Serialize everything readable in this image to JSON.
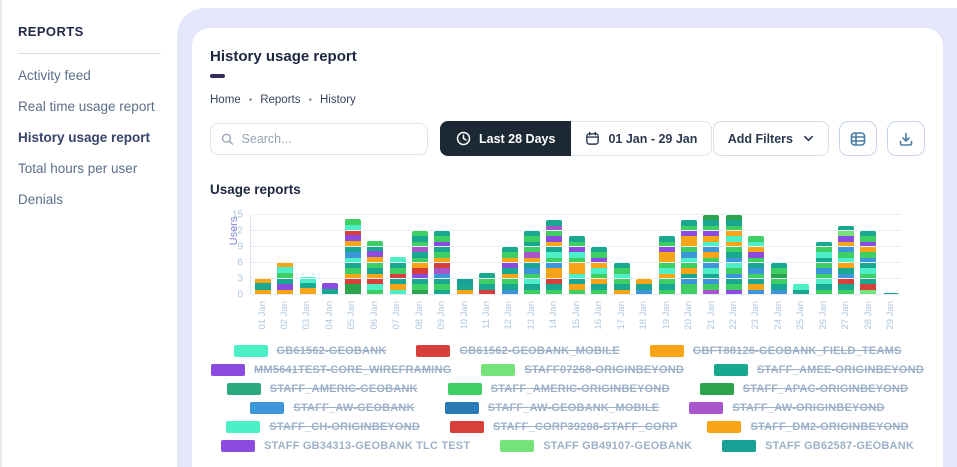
{
  "sidebar": {
    "section_label": "REPORTS",
    "items": [
      {
        "label": "Activity feed",
        "active": false
      },
      {
        "label": "Real time usage report",
        "active": false
      },
      {
        "label": "History usage report",
        "active": true
      },
      {
        "label": "Total hours per user",
        "active": false
      },
      {
        "label": "Denials",
        "active": false
      }
    ]
  },
  "header": {
    "title": "History usage report",
    "breadcrumb": [
      "Home",
      "Reports",
      "History"
    ]
  },
  "toolbar": {
    "search_placeholder": "Search...",
    "range_button": "Last 28 Days",
    "date_range": "01 Jan - 29 Jan",
    "add_filters": "Add Filters"
  },
  "section_title": "Usage reports",
  "colors": {
    "accent_dark": "#1c2834",
    "shell": "#e5e6f9",
    "underline": "#322c5a",
    "palette": {
      "mint": "#4df0c6",
      "red": "#d7403a",
      "orange": "#f7a516",
      "violet": "#8c4be0",
      "lgreen": "#76e37a",
      "teal": "#18a88f",
      "seagreen": "#2aa87e",
      "green": "#3ecf63",
      "dgreen": "#2ca44e",
      "blue": "#3d96d9",
      "dblue": "#2a79b5",
      "plum": "#a855cb",
      "teal2": "#16a096"
    }
  },
  "chart_data": {
    "type": "bar",
    "variant": "stacked",
    "title": "Usage reports",
    "xlabel": "",
    "ylabel": "Users",
    "ylim": [
      0,
      15
    ],
    "yticks": [
      0,
      3,
      6,
      9,
      12,
      15
    ],
    "grid": true,
    "legend_position": "bottom",
    "categories": [
      "01 Jan",
      "02 Jan",
      "03 Jan",
      "04 Jan",
      "05 Jan",
      "06 Jan",
      "07 Jan",
      "08 Jan",
      "09 Jan",
      "10 Jan",
      "11 Jan",
      "12 Jan",
      "13 Jan",
      "14 Jan",
      "15 Jan",
      "16 Jan",
      "17 Jan",
      "18 Jan",
      "19 Jan",
      "20 Jan",
      "21 Jan",
      "22 Jan",
      "23 Jan",
      "24 Jan",
      "25 Jan",
      "26 Jan",
      "27 Jan",
      "28 Jan",
      "29 Jan"
    ],
    "totals": [
      3.2,
      6.2,
      3.3,
      2.2,
      14.2,
      10.2,
      7.2,
      12.1,
      12.1,
      3.1,
      4.1,
      9,
      12.1,
      14,
      11,
      9,
      6,
      3,
      11,
      14,
      15,
      15,
      11,
      6,
      2,
      10,
      13,
      12,
      0.3
    ],
    "series": [
      {
        "name": "GB61562-GEOBANK",
        "color": "mint"
      },
      {
        "name": "GB61562-GEOBANK_MOBILE",
        "color": "red"
      },
      {
        "name": "GBFT88126-GEOBANK_FIELD_TEAMS",
        "color": "orange"
      },
      {
        "name": "MM5641TEST-CORE_WIREFRAMING",
        "color": "violet"
      },
      {
        "name": "STAFF07268-ORIGINBEYOND",
        "color": "lgreen"
      },
      {
        "name": "STAFF_AMEE-ORIGINBEYOND",
        "color": "teal"
      },
      {
        "name": "STAFF_AMERIC-GEOBANK",
        "color": "seagreen"
      },
      {
        "name": "STAFF_AMERIC-ORIGINBEYOND",
        "color": "green"
      },
      {
        "name": "STAFF_APAC-ORIGINBEYOND",
        "color": "dgreen"
      },
      {
        "name": "STAFF_AW-GEOBANK",
        "color": "blue"
      },
      {
        "name": "STAFF_AW-GEOBANK_MOBILE",
        "color": "dblue"
      },
      {
        "name": "STAFF_AW-ORIGINBEYOND",
        "color": "plum"
      },
      {
        "name": "STAFF_CH-ORIGINBEYOND",
        "color": "mint"
      },
      {
        "name": "STAFF_CORP39208-STAFF_CORP",
        "color": "red"
      },
      {
        "name": "STAFF_DM2-ORIGINBEYOND",
        "color": "orange"
      },
      {
        "name": "STAFF GB34313-GEOBANK TLC TEST",
        "color": "violet"
      },
      {
        "name": "STAFF GB49107-GEOBANK",
        "color": "lgreen"
      },
      {
        "name": "STAFF GB62587-GEOBANK",
        "color": "teal2"
      }
    ],
    "bars": [
      [
        [
          "orange",
          1
        ],
        [
          "teal",
          1.2
        ],
        [
          "orange",
          1
        ]
      ],
      [
        [
          "orange",
          1
        ],
        [
          "violet",
          1
        ],
        [
          "teal",
          1
        ],
        [
          "green",
          1.2
        ],
        [
          "mint",
          1
        ],
        [
          "orange",
          1
        ]
      ],
      [
        [
          "orange",
          1.3
        ],
        [
          "teal",
          1
        ],
        [
          "mint",
          1
        ]
      ],
      [
        [
          "teal",
          1.2
        ],
        [
          "violet",
          1
        ]
      ],
      [
        [
          "dgreen",
          2
        ],
        [
          "red",
          1
        ],
        [
          "orange",
          1
        ],
        [
          "green",
          1
        ],
        [
          "teal",
          1
        ],
        [
          "mint",
          1
        ],
        [
          "blue",
          1
        ],
        [
          "teal",
          1
        ],
        [
          "orange",
          1.2
        ],
        [
          "violet",
          1
        ],
        [
          "red",
          1
        ],
        [
          "mint",
          1
        ],
        [
          "green",
          1
        ]
      ],
      [
        [
          "green",
          1
        ],
        [
          "mint",
          1
        ],
        [
          "red",
          1
        ],
        [
          "orange",
          1
        ],
        [
          "teal",
          1
        ],
        [
          "green",
          1
        ],
        [
          "orange",
          1.2
        ],
        [
          "violet",
          1
        ],
        [
          "teal",
          1
        ],
        [
          "green",
          1
        ]
      ],
      [
        [
          "mint",
          1
        ],
        [
          "orange",
          1
        ],
        [
          "teal",
          1
        ],
        [
          "red",
          1
        ],
        [
          "green",
          1
        ],
        [
          "teal",
          1
        ],
        [
          "mint",
          1.2
        ]
      ],
      [
        [
          "dgreen",
          1
        ],
        [
          "green",
          1
        ],
        [
          "teal",
          1
        ],
        [
          "violet",
          1
        ],
        [
          "red",
          1
        ],
        [
          "orange",
          1
        ],
        [
          "green",
          1
        ],
        [
          "teal",
          1
        ],
        [
          "plum",
          1
        ],
        [
          "green",
          1
        ],
        [
          "teal",
          1
        ],
        [
          "green",
          1.1
        ]
      ],
      [
        [
          "teal",
          1
        ],
        [
          "green",
          1
        ],
        [
          "teal",
          1
        ],
        [
          "blue",
          1
        ],
        [
          "plum",
          1
        ],
        [
          "red",
          1
        ],
        [
          "orange",
          1
        ],
        [
          "green",
          1
        ],
        [
          "teal",
          1
        ],
        [
          "violet",
          1
        ],
        [
          "green",
          1
        ],
        [
          "teal",
          1.1
        ]
      ],
      [
        [
          "orange",
          1
        ],
        [
          "teal",
          1
        ],
        [
          "teal2",
          1.1
        ]
      ],
      [
        [
          "red",
          1
        ],
        [
          "teal",
          1
        ],
        [
          "green",
          1
        ],
        [
          "teal",
          1.1
        ]
      ],
      [
        [
          "blue",
          1
        ],
        [
          "teal",
          1
        ],
        [
          "green",
          1
        ],
        [
          "orange",
          1
        ],
        [
          "teal",
          1
        ],
        [
          "violet",
          1
        ],
        [
          "orange",
          1
        ],
        [
          "green",
          1
        ],
        [
          "teal",
          1
        ]
      ],
      [
        [
          "green",
          1
        ],
        [
          "teal",
          1
        ],
        [
          "mint",
          1
        ],
        [
          "green",
          1
        ],
        [
          "blue",
          1
        ],
        [
          "teal",
          1
        ],
        [
          "orange",
          1
        ],
        [
          "plum",
          1
        ],
        [
          "green",
          1
        ],
        [
          "teal",
          1
        ],
        [
          "green",
          1
        ],
        [
          "teal",
          1.1
        ]
      ],
      [
        [
          "green",
          1
        ],
        [
          "teal",
          1
        ],
        [
          "red",
          1
        ],
        [
          "orange",
          2
        ],
        [
          "blue",
          1
        ],
        [
          "green",
          1
        ],
        [
          "mint",
          1
        ],
        [
          "teal",
          1
        ],
        [
          "orange",
          1
        ],
        [
          "violet",
          1
        ],
        [
          "green",
          1
        ],
        [
          "plum",
          1
        ],
        [
          "teal",
          1
        ]
      ],
      [
        [
          "green",
          1
        ],
        [
          "orange",
          1
        ],
        [
          "teal",
          1
        ],
        [
          "mint",
          1
        ],
        [
          "orange",
          2
        ],
        [
          "green",
          1
        ],
        [
          "mint",
          1
        ],
        [
          "violet",
          1
        ],
        [
          "green",
          1
        ],
        [
          "teal",
          1
        ]
      ],
      [
        [
          "green",
          1
        ],
        [
          "teal",
          1
        ],
        [
          "orange",
          1
        ],
        [
          "green",
          1
        ],
        [
          "mint",
          1
        ],
        [
          "orange",
          1
        ],
        [
          "violet",
          1
        ],
        [
          "green",
          1
        ],
        [
          "teal",
          1
        ]
      ],
      [
        [
          "orange",
          1
        ],
        [
          "teal",
          1
        ],
        [
          "green",
          1
        ],
        [
          "mint",
          1
        ],
        [
          "green",
          1
        ],
        [
          "teal",
          1
        ]
      ],
      [
        [
          "blue",
          1
        ],
        [
          "teal",
          1
        ],
        [
          "orange",
          1
        ]
      ],
      [
        [
          "green",
          1
        ],
        [
          "teal",
          1
        ],
        [
          "green",
          1
        ],
        [
          "orange",
          1
        ],
        [
          "mint",
          1
        ],
        [
          "green",
          1
        ],
        [
          "orange",
          2
        ],
        [
          "violet",
          1
        ],
        [
          "green",
          1
        ],
        [
          "teal",
          1
        ]
      ],
      [
        [
          "green",
          2
        ],
        [
          "blue",
          1
        ],
        [
          "teal",
          1
        ],
        [
          "orange",
          1
        ],
        [
          "green",
          1
        ],
        [
          "mint",
          1
        ],
        [
          "blue",
          1
        ],
        [
          "green",
          1
        ],
        [
          "orange",
          2
        ],
        [
          "violet",
          1
        ],
        [
          "green",
          1
        ],
        [
          "teal",
          1
        ]
      ],
      [
        [
          "plum",
          1
        ],
        [
          "green",
          1
        ],
        [
          "blue",
          1
        ],
        [
          "teal",
          1
        ],
        [
          "mint",
          1
        ],
        [
          "blue",
          1
        ],
        [
          "green",
          1
        ],
        [
          "orange",
          1
        ],
        [
          "blue",
          1
        ],
        [
          "mint",
          1
        ],
        [
          "orange",
          1
        ],
        [
          "violet",
          1
        ],
        [
          "green",
          1
        ],
        [
          "teal",
          1
        ],
        [
          "dgreen",
          1
        ]
      ],
      [
        [
          "violet",
          1
        ],
        [
          "green",
          1
        ],
        [
          "teal",
          1
        ],
        [
          "blue",
          1
        ],
        [
          "green",
          1
        ],
        [
          "mint",
          1
        ],
        [
          "blue",
          1
        ],
        [
          "teal",
          1
        ],
        [
          "green",
          1
        ],
        [
          "orange",
          1
        ],
        [
          "mint",
          1
        ],
        [
          "orange",
          1
        ],
        [
          "green",
          1
        ],
        [
          "teal",
          1
        ],
        [
          "dgreen",
          1
        ]
      ],
      [
        [
          "blue",
          1
        ],
        [
          "orange",
          1
        ],
        [
          "teal",
          1
        ],
        [
          "green",
          1
        ],
        [
          "blue",
          1
        ],
        [
          "teal",
          1
        ],
        [
          "green",
          1
        ],
        [
          "violet",
          1
        ],
        [
          "orange",
          1
        ],
        [
          "mint",
          1
        ],
        [
          "green",
          1
        ]
      ],
      [
        [
          "blue",
          1
        ],
        [
          "teal",
          1
        ],
        [
          "green",
          1
        ],
        [
          "dgreen",
          1
        ],
        [
          "green",
          1
        ],
        [
          "teal",
          1
        ]
      ],
      [
        [
          "teal",
          1
        ],
        [
          "mint",
          1
        ]
      ],
      [
        [
          "green",
          1
        ],
        [
          "teal",
          1
        ],
        [
          "mint",
          1
        ],
        [
          "green",
          1
        ],
        [
          "blue",
          1
        ],
        [
          "green",
          1
        ],
        [
          "teal",
          1
        ],
        [
          "mint",
          1
        ],
        [
          "green",
          1
        ],
        [
          "teal",
          1
        ]
      ],
      [
        [
          "green",
          1
        ],
        [
          "teal",
          1
        ],
        [
          "red",
          1
        ],
        [
          "blue",
          1
        ],
        [
          "teal",
          1
        ],
        [
          "orange",
          1
        ],
        [
          "mint",
          1
        ],
        [
          "green",
          1
        ],
        [
          "blue",
          1
        ],
        [
          "orange",
          1
        ],
        [
          "violet",
          1
        ],
        [
          "lgreen",
          1
        ],
        [
          "teal",
          1
        ]
      ],
      [
        [
          "lgreen",
          1
        ],
        [
          "red",
          1
        ],
        [
          "teal",
          1
        ],
        [
          "green",
          1
        ],
        [
          "mint",
          1
        ],
        [
          "teal",
          1
        ],
        [
          "blue",
          1
        ],
        [
          "green",
          1
        ],
        [
          "orange",
          1
        ],
        [
          "violet",
          1
        ],
        [
          "green",
          1
        ],
        [
          "teal",
          1
        ]
      ],
      [
        [
          "teal2",
          0.3
        ]
      ]
    ]
  },
  "legend": {
    "items": [
      {
        "color": "mint",
        "label": "GB61562-GEOBANK",
        "struck": true
      },
      {
        "color": "red",
        "label": "GB61562-GEOBANK_MOBILE",
        "struck": true
      },
      {
        "color": "orange",
        "label": "GBFT88126-GEOBANK_FIELD_TEAMS",
        "struck": true
      },
      {
        "color": "violet",
        "label": "MM5641TEST-CORE_WIREFRAMING",
        "struck": true
      },
      {
        "color": "lgreen",
        "label": "STAFF07268-ORIGINBEYOND",
        "struck": true
      },
      {
        "color": "teal",
        "label": "STAFF_AMEE-ORIGINBEYOND",
        "struck": true
      },
      {
        "color": "seagreen",
        "label": "STAFF_AMERIC-GEOBANK",
        "struck": true
      },
      {
        "color": "green",
        "label": "STAFF_AMERIC-ORIGINBEYOND",
        "struck": true
      },
      {
        "color": "dgreen",
        "label": "STAFF_APAC-ORIGINBEYOND",
        "struck": true
      },
      {
        "color": "blue",
        "label": "STAFF_AW-GEOBANK",
        "struck": true
      },
      {
        "color": "dblue",
        "label": "STAFF_AW-GEOBANK_MOBILE",
        "struck": true
      },
      {
        "color": "plum",
        "label": "STAFF_AW-ORIGINBEYOND",
        "struck": true
      },
      {
        "color": "mint",
        "label": "STAFF_CH-ORIGINBEYOND",
        "struck": true
      },
      {
        "color": "red",
        "label": "STAFF_CORP39208-STAFF_CORP",
        "struck": true
      },
      {
        "color": "orange",
        "label": "STAFF_DM2-ORIGINBEYOND",
        "struck": true
      },
      {
        "color": "violet",
        "label": "STAFF GB34313-GEOBANK TLC TEST",
        "struck": false
      },
      {
        "color": "lgreen",
        "label": "STAFF GB49107-GEOBANK",
        "struck": false
      },
      {
        "color": "teal2",
        "label": "STAFF GB62587-GEOBANK",
        "struck": false
      }
    ]
  }
}
